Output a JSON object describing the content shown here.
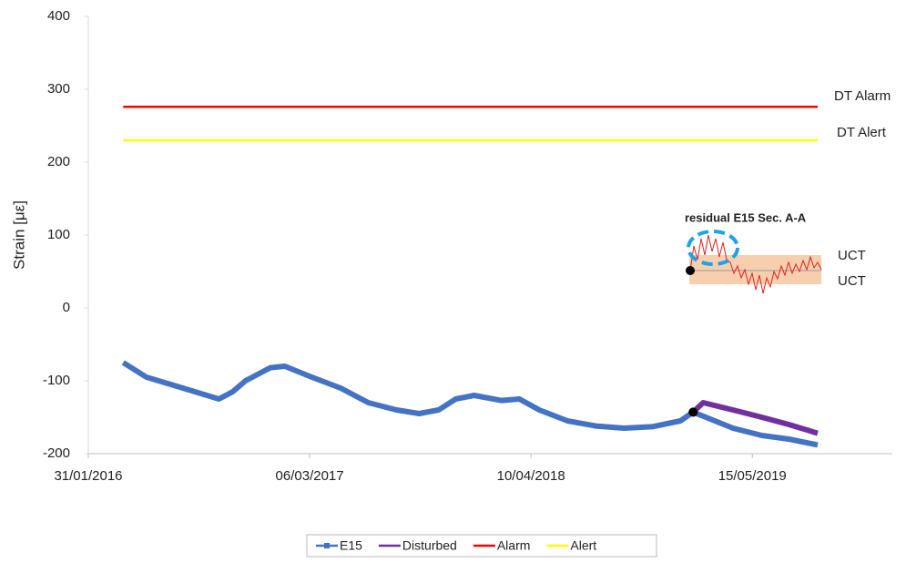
{
  "chart_data": {
    "type": "line",
    "y_label": "Strain [με]",
    "xlim": [
      "2016-01-31",
      "2020-01-23"
    ],
    "xticks": [
      {
        "value": "2016-01-31",
        "label": "31/01/2016"
      },
      {
        "value": "2017-03-06",
        "label": "06/03/2017"
      },
      {
        "value": "2018-04-10",
        "label": "10/04/2018"
      },
      {
        "value": "2019-05-15",
        "label": "15/05/2019"
      }
    ],
    "ylim": [
      -200,
      400
    ],
    "yticks": [
      -200,
      -100,
      0,
      100,
      200,
      300,
      400
    ],
    "grid": false,
    "legend": "bottom",
    "series": [
      {
        "name": "E15",
        "color": "#4472c4",
        "x": [
          "2016-04-03",
          "2016-05-15",
          "2016-07-20",
          "2016-09-23",
          "2016-10-18",
          "2016-11-10",
          "2016-12-25",
          "2017-01-20",
          "2017-03-10",
          "2017-05-01",
          "2017-06-20",
          "2017-08-10",
          "2017-09-20",
          "2017-10-25",
          "2017-11-25",
          "2017-12-28",
          "2018-02-15",
          "2018-03-20",
          "2018-04-25",
          "2018-06-15",
          "2018-08-05",
          "2018-09-25",
          "2018-11-15",
          "2019-01-05",
          "2019-01-28",
          "2019-02-20",
          "2019-04-10",
          "2019-06-01",
          "2019-07-20",
          "2019-09-10"
        ],
        "values": [
          -75,
          -95,
          -110,
          -125,
          -115,
          -100,
          -82,
          -80,
          -95,
          -110,
          -130,
          -140,
          -145,
          -140,
          -125,
          -120,
          -127,
          -125,
          -140,
          -155,
          -162,
          -165,
          -163,
          -155,
          -143,
          -150,
          -165,
          -175,
          -180,
          -188
        ]
      },
      {
        "name": "Disturbed",
        "color": "#7030a0",
        "x": [
          "2019-01-28",
          "2019-02-15",
          "2019-04-10",
          "2019-06-01",
          "2019-07-20",
          "2019-09-10"
        ],
        "values": [
          -143,
          -130,
          -140,
          -150,
          -160,
          -172
        ]
      },
      {
        "name": "Alarm",
        "color": "#ff0000",
        "x": [
          "2016-04-03",
          "2019-09-10"
        ],
        "values": [
          276,
          276
        ]
      },
      {
        "name": "Alert",
        "color": "#ffff00",
        "x": [
          "2016-04-03",
          "2019-09-10"
        ],
        "values": [
          230,
          230
        ]
      }
    ],
    "annotations": [
      "DT Alarm",
      "DT Alert",
      "residual E15 Sec. A-A",
      "UCT",
      "UCT"
    ]
  }
}
